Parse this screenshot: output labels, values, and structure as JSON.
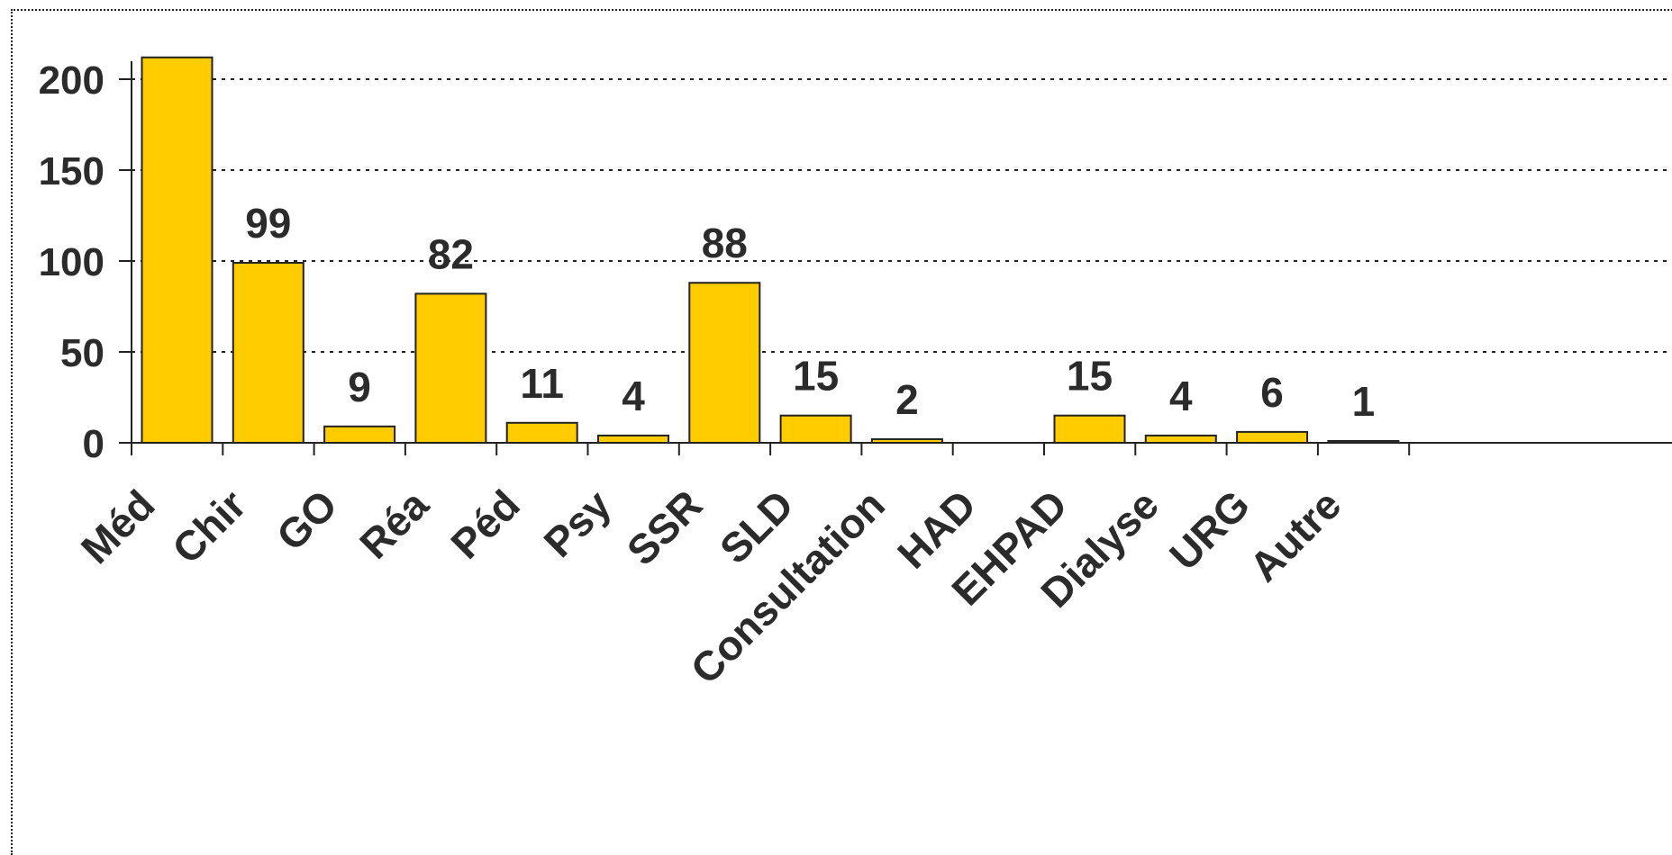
{
  "chart_data": {
    "type": "bar",
    "title": "",
    "xlabel": "",
    "ylabel": "",
    "ylim": [
      0,
      220
    ],
    "yticks": [
      "0",
      "50",
      "100",
      "150",
      "200"
    ],
    "grid": "horizontal dotted",
    "categories": [
      "Méd",
      "Chir",
      "GO",
      "Réa",
      "Péd",
      "Psy",
      "SSR",
      "SLD",
      "Consultation",
      "HAD",
      "EHPAD",
      "Dialyse",
      "URG",
      "Autre"
    ],
    "values": [
      212,
      99,
      9,
      82,
      11,
      4,
      88,
      15,
      2,
      0,
      15,
      4,
      6,
      1
    ],
    "data_labels": [
      "",
      "99",
      "9",
      "82",
      "11",
      "4",
      "88",
      "15",
      "2",
      "",
      "15",
      "4",
      "6",
      "1"
    ],
    "bar_color": "#FFCC00",
    "bar_edge_color": "#222222"
  }
}
